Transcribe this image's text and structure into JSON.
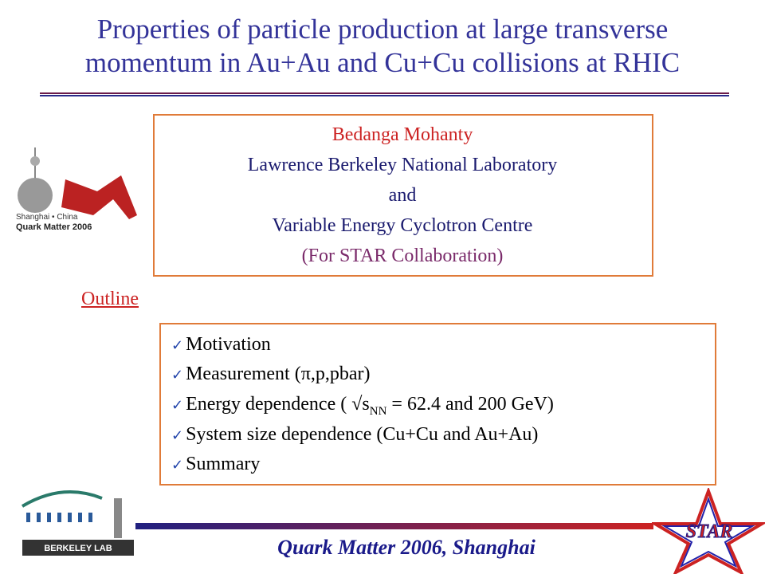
{
  "header": {
    "title_lines": [
      "Properties of particle production at large transverse",
      "momentum in Au+Au and Cu+Cu collisions at RHIC"
    ]
  },
  "authors": {
    "lines": [
      "Bedanga Mohanty",
      "Lawrence Berkeley National Laboratory",
      "and",
      "Variable Energy Cyclotron Centre",
      "(For STAR Collaboration)"
    ]
  },
  "outline": {
    "heading": "Outline",
    "items": [
      {
        "text": "Motivation"
      },
      {
        "text": "Measurement (π,p,pbar)"
      },
      {
        "text": "Energy dependence ( √s",
        "sub": "NN",
        "after": " = 62.4 and 200 GeV)"
      },
      {
        "text": "System size dependence (Cu+Cu and Au+Au)"
      },
      {
        "text": "Summary"
      }
    ]
  },
  "logos": {
    "conference_place": "Shanghai • China",
    "conference_name": "Quark Matter 2006",
    "lab": "BERKELEY LAB",
    "experiment": "STAR"
  },
  "footer": {
    "text": "Quark Matter 2006, Shanghai"
  }
}
